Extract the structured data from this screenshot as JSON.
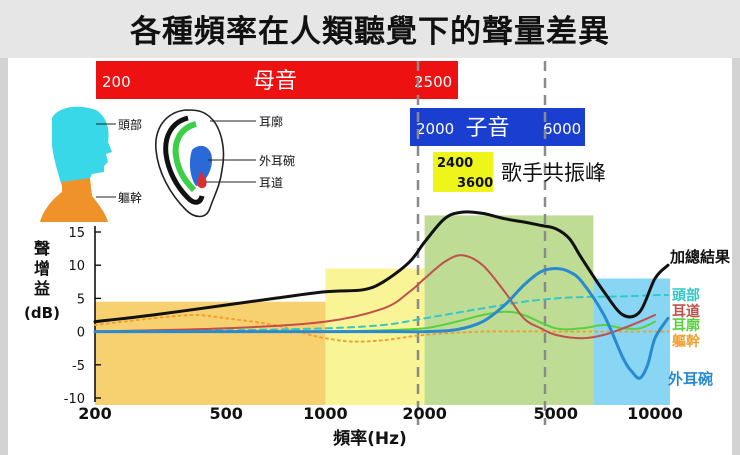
{
  "header": {
    "title": "各種頻率在人類聽覺下的聲量差異"
  },
  "colors": {
    "vowel_band": "#ee1111",
    "consonant_band": "#1a3fd0",
    "formant_box": "#eef51a",
    "curve_total": "#111111",
    "curve_head": "#32c8c8",
    "curve_canal": "#c0504d",
    "curve_concha": "#5ad040",
    "curve_torso": "#f0a030",
    "curve_pinna": "#2a8ad0"
  },
  "legend_figures": {
    "head_label": "頭部",
    "torso_label": "軀幹",
    "pinna_label": "耳廓",
    "concha_label": "外耳碗",
    "canal_label": "耳道"
  },
  "chart_data": {
    "type": "line",
    "x_scale": "log",
    "xlim": [
      200,
      10000
    ],
    "ylim": [
      -10,
      15
    ],
    "grid": false,
    "xlabel": "頻率(Hz)",
    "ylabel": "聲增益 (dB)",
    "x_ticks": [
      200,
      500,
      1000,
      2000,
      5000,
      10000
    ],
    "y_ticks": [
      -10,
      -5,
      0,
      5,
      10,
      15
    ],
    "bands": [
      {
        "label": "母音",
        "from": 200,
        "to": 2500,
        "from_label": "200",
        "to_label": "2500",
        "color": "#ee1111"
      },
      {
        "label": "子音",
        "from": 2000,
        "to": 6000,
        "from_label": "2000",
        "to_label": "6000",
        "color": "#1a3fd0"
      }
    ],
    "formant": {
      "label": "歌手共振峰",
      "from": 2400,
      "to": 3600,
      "from_label": "2400",
      "to_label": "3600"
    },
    "regions": [
      {
        "from": 200,
        "to": 1000,
        "top": 4.5,
        "color": "#f4c040"
      },
      {
        "from": 1000,
        "to": 2000,
        "top": 9.5,
        "color": "#f7f072"
      },
      {
        "from": 2000,
        "to": 6500,
        "top": 17.5,
        "color": "#a8d070"
      },
      {
        "from": 6500,
        "to": 10000,
        "top": 8,
        "color": "#60c8f0"
      }
    ],
    "series": [
      {
        "name": "加總結果",
        "color": "#111111",
        "style": "solid",
        "width": 3,
        "x": [
          200,
          300,
          500,
          700,
          1000,
          1300,
          1500,
          1800,
          2000,
          2300,
          2600,
          3000,
          3500,
          4000,
          4500,
          5000,
          5500,
          6000,
          7000,
          8000,
          9000,
          10000,
          11000
        ],
        "y": [
          1.5,
          2.5,
          4,
          5,
          6,
          6.3,
          7.5,
          10.5,
          13.5,
          17,
          18,
          17.8,
          17,
          16.5,
          16,
          15.5,
          14,
          11,
          6,
          2.5,
          3,
          8,
          10
        ]
      },
      {
        "name": "頭部",
        "color": "#32c8c8",
        "style": "dashed",
        "width": 2,
        "x": [
          200,
          500,
          1000,
          1500,
          2000,
          3000,
          4000,
          5000,
          6000,
          8000,
          10000,
          11000
        ],
        "y": [
          0,
          0.2,
          0.5,
          1,
          2,
          3.5,
          4.5,
          5,
          5.2,
          5.3,
          5.5,
          5.5
        ]
      },
      {
        "name": "耳道",
        "color": "#c0504d",
        "style": "solid",
        "width": 2,
        "x": [
          200,
          500,
          1000,
          1500,
          1800,
          2000,
          2300,
          2600,
          3000,
          3500,
          4000,
          4500,
          5000,
          6000,
          7000,
          8000,
          9000,
          10000
        ],
        "y": [
          0,
          0.5,
          1.5,
          3.5,
          6,
          8,
          10.5,
          11.5,
          10,
          6,
          2,
          0.5,
          -0.5,
          -1,
          -0.5,
          0.5,
          1.5,
          2.5
        ]
      },
      {
        "name": "耳廓",
        "color": "#5ad040",
        "style": "solid",
        "width": 2,
        "x": [
          200,
          500,
          1000,
          1500,
          2000,
          2500,
          3000,
          3500,
          4000,
          5000,
          6000,
          7000,
          8000,
          9000,
          10000
        ],
        "y": [
          0,
          0,
          0,
          0.2,
          0.5,
          1.5,
          2.5,
          3,
          2.5,
          0.5,
          0.5,
          1,
          0.5,
          0.5,
          1.5
        ]
      },
      {
        "name": "軀幹",
        "color": "#f0a030",
        "style": "dotted",
        "width": 2,
        "x": [
          200,
          300,
          400,
          500,
          700,
          900,
          1000,
          1200,
          1500,
          2000,
          3000,
          5000,
          10000,
          11000
        ],
        "y": [
          1,
          2,
          2.5,
          2,
          1,
          -0.5,
          -1,
          -1.5,
          -1.3,
          -0.5,
          0,
          0,
          0,
          0
        ]
      },
      {
        "name": "外耳碗",
        "color": "#2a8ad0",
        "style": "solid",
        "width": 3,
        "x": [
          200,
          1000,
          1500,
          2000,
          2500,
          3000,
          3500,
          4000,
          4500,
          5000,
          5500,
          6000,
          7000,
          8000,
          8500,
          9000,
          9500,
          10000,
          11000
        ],
        "y": [
          0,
          0,
          0,
          0,
          0.3,
          1.5,
          4,
          7,
          9,
          9.5,
          9,
          7.5,
          2.5,
          -4,
          -6,
          -7,
          -5,
          -1,
          2
        ]
      }
    ]
  }
}
